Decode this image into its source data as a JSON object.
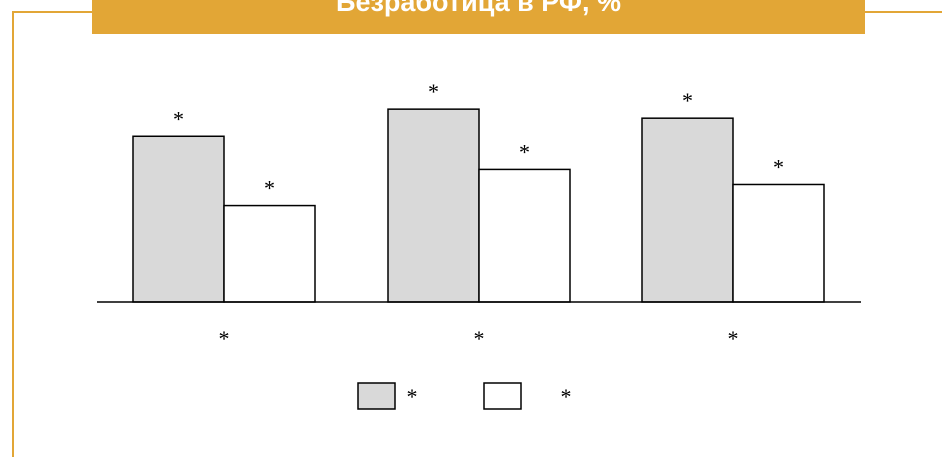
{
  "title": "Безработица в РФ, %",
  "colors": {
    "frame": "#e2a636",
    "title_band": "#e2a636",
    "title_text": "#ffffff",
    "series_filled": "#d9d9d9",
    "series_empty": "#ffffff",
    "outline": "#000000"
  },
  "chart_data": {
    "type": "bar",
    "title": "Безработица в РФ, %",
    "categories": [
      "*",
      "*",
      "*"
    ],
    "series": [
      {
        "name": "*",
        "values": [
          5.5,
          6.4,
          6.1
        ]
      },
      {
        "name": "*",
        "values": [
          3.2,
          4.4,
          3.9
        ]
      }
    ],
    "data_labels": [
      [
        "*",
        "*",
        "*"
      ],
      [
        "*",
        "*",
        "*"
      ]
    ],
    "ylim": [
      0,
      7.5
    ],
    "grid": false,
    "legend": "bottom"
  }
}
